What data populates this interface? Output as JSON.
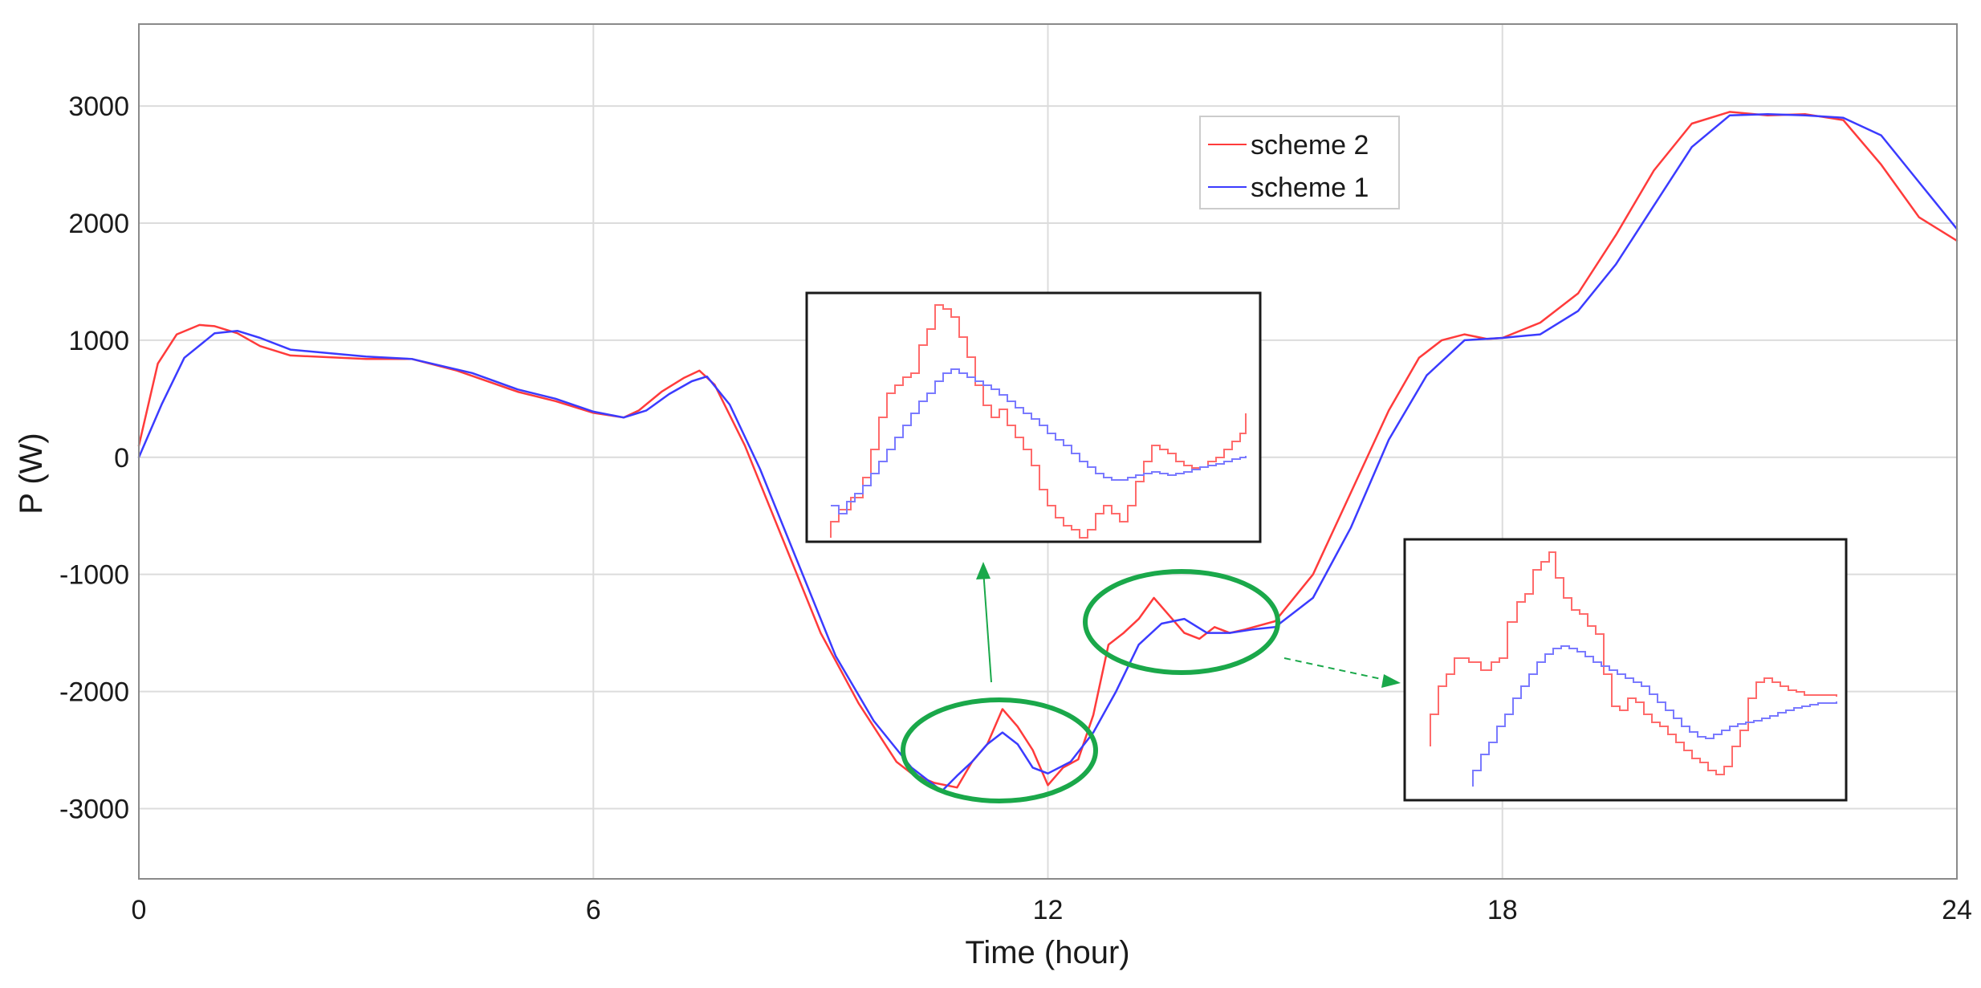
{
  "chart_data": {
    "type": "line",
    "xlabel": "Time (hour)",
    "ylabel": "P (W)",
    "xlim": [
      0,
      24
    ],
    "ylim": [
      -3600,
      3700
    ],
    "xticks": [
      0,
      6,
      12,
      18,
      24
    ],
    "yticks": [
      -3000,
      -2000,
      -1000,
      0,
      1000,
      2000,
      3000
    ],
    "xtick_labels": [
      "0",
      "6",
      "12",
      "18",
      "24"
    ],
    "ytick_labels": [
      "-3000",
      "-2000",
      "-1000",
      "0",
      "1000",
      "2000",
      "3000"
    ],
    "grid": true,
    "legend_position": "top-center",
    "series": [
      {
        "name": "scheme 2",
        "color": "#ff3b3b",
        "x": [
          0,
          0.25,
          0.5,
          0.8,
          1.0,
          1.3,
          1.6,
          2.0,
          3.0,
          3.6,
          4.2,
          5.0,
          5.5,
          6.0,
          6.4,
          6.6,
          6.9,
          7.2,
          7.4,
          7.6,
          8.0,
          8.5,
          9.0,
          9.5,
          10.0,
          10.2,
          10.5,
          10.8,
          11.0,
          11.2,
          11.4,
          11.6,
          11.8,
          12.0,
          12.2,
          12.4,
          12.6,
          12.8,
          13.0,
          13.2,
          13.4,
          13.6,
          13.8,
          14.0,
          14.2,
          14.4,
          14.6,
          15.0,
          15.5,
          16.0,
          16.5,
          16.9,
          17.2,
          17.5,
          17.8,
          18.0,
          18.5,
          19.0,
          19.5,
          20.0,
          20.5,
          21.0,
          21.5,
          22.0,
          22.5,
          23.0,
          23.5,
          24.0
        ],
        "y": [
          100,
          800,
          1050,
          1130,
          1120,
          1060,
          950,
          870,
          840,
          840,
          740,
          560,
          480,
          380,
          340,
          400,
          560,
          680,
          740,
          620,
          100,
          -700,
          -1500,
          -2100,
          -2600,
          -2700,
          -2780,
          -2820,
          -2600,
          -2450,
          -2150,
          -2300,
          -2500,
          -2800,
          -2650,
          -2580,
          -2200,
          -1600,
          -1500,
          -1380,
          -1200,
          -1350,
          -1500,
          -1550,
          -1450,
          -1500,
          -1470,
          -1400,
          -1000,
          -300,
          400,
          850,
          1000,
          1050,
          1010,
          1020,
          1150,
          1400,
          1900,
          2450,
          2850,
          2950,
          2920,
          2930,
          2880,
          2500,
          2050,
          1850
        ]
      },
      {
        "name": "scheme 1",
        "color": "#3b3bff",
        "x": [
          0,
          0.3,
          0.6,
          1.0,
          1.3,
          1.6,
          2.0,
          3.0,
          3.6,
          4.4,
          5.0,
          5.5,
          6.0,
          6.4,
          6.7,
          7.0,
          7.3,
          7.5,
          7.8,
          8.2,
          8.7,
          9.2,
          9.7,
          10.2,
          10.6,
          10.8,
          11.0,
          11.2,
          11.4,
          11.6,
          11.8,
          12.0,
          12.3,
          12.6,
          12.9,
          13.2,
          13.5,
          13.8,
          14.1,
          14.4,
          14.7,
          15.0,
          15.5,
          16.0,
          16.5,
          17.0,
          17.5,
          18.0,
          18.5,
          19.0,
          19.5,
          20.0,
          20.5,
          21.0,
          21.5,
          22.0,
          22.5,
          23.0,
          23.5,
          24.0
        ],
        "y": [
          0,
          450,
          850,
          1060,
          1080,
          1020,
          920,
          860,
          840,
          720,
          580,
          500,
          390,
          340,
          400,
          540,
          650,
          690,
          450,
          -100,
          -900,
          -1700,
          -2250,
          -2650,
          -2850,
          -2720,
          -2600,
          -2450,
          -2350,
          -2450,
          -2650,
          -2700,
          -2600,
          -2350,
          -2000,
          -1600,
          -1420,
          -1380,
          -1500,
          -1500,
          -1470,
          -1450,
          -1200,
          -600,
          150,
          700,
          1000,
          1020,
          1050,
          1250,
          1650,
          2150,
          2650,
          2920,
          2930,
          2920,
          2900,
          2750,
          2350,
          1950
        ]
      }
    ]
  },
  "colors": {
    "grid": "#dcdcdc",
    "axes": "#8a8a8a",
    "annotation": "#1aa84a",
    "inset_border": "#1a1a1a"
  }
}
